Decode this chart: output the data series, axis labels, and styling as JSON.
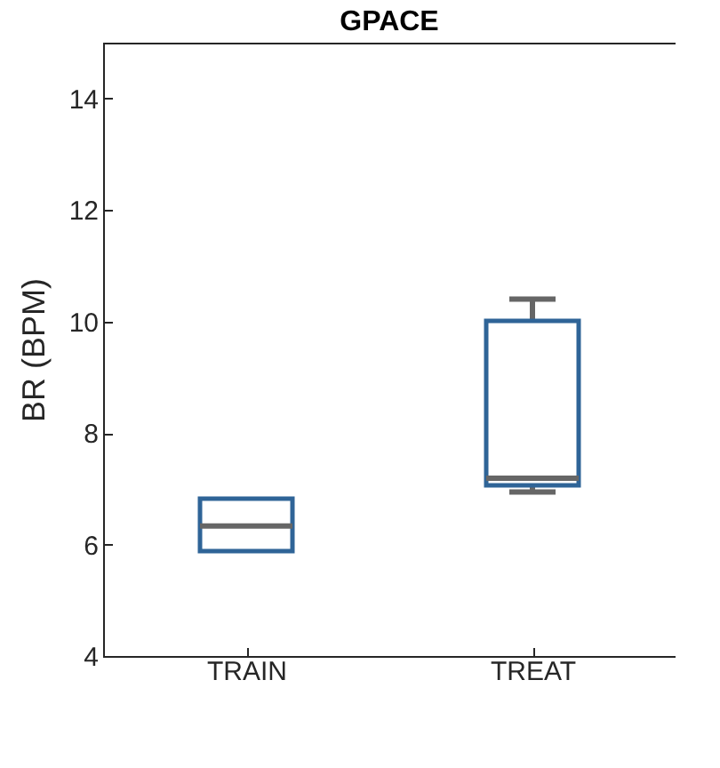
{
  "chart_data": {
    "type": "box",
    "title": "GPACE",
    "ylabel": "BR (BPM)",
    "categories": [
      "TRAIN",
      "TREAT"
    ],
    "ylim": [
      4,
      15
    ],
    "yticks": [
      4,
      6,
      8,
      10,
      12,
      14
    ],
    "grid": false,
    "series": [
      {
        "color": "#2f6497",
        "boxes": [
          {
            "low": 5.88,
            "q1": 5.88,
            "median": 6.33,
            "q3": 6.82,
            "high": 6.82
          },
          {
            "low": 6.94,
            "q1": 7.06,
            "median": 7.19,
            "q3": 10.01,
            "high": 10.4
          }
        ]
      }
    ]
  }
}
